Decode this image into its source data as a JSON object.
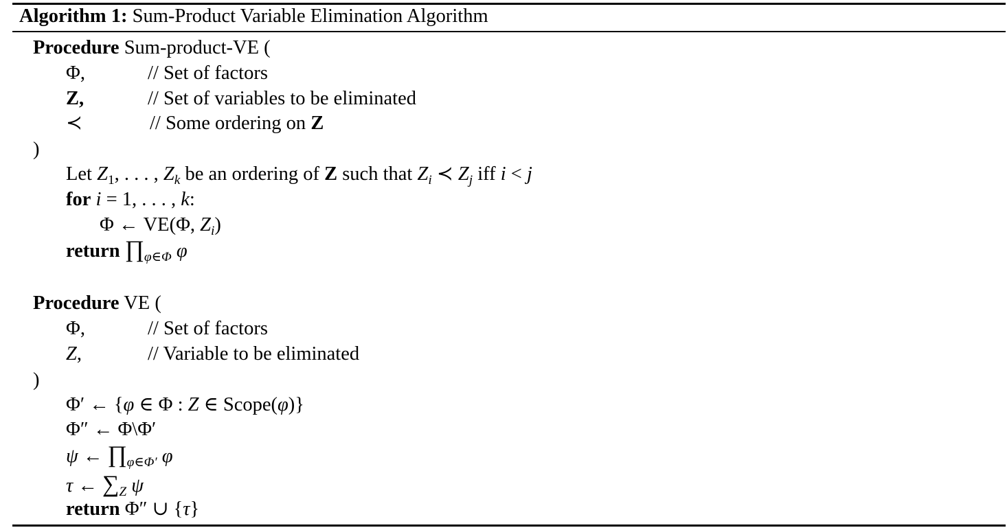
{
  "algorithm": {
    "label": "Algorithm 1:",
    "title": "Sum-Product Variable Elimination Algorithm"
  },
  "kw": {
    "procedure": "Procedure",
    "for": "for",
    "return": "return"
  },
  "sum_product_ve": {
    "name": "Sum-product-VE (",
    "params": [
      {
        "symbol": "Φ,",
        "comment": "// Set of factors"
      },
      {
        "symbol": "Z,",
        "comment": "// Set of variables to be eliminated"
      },
      {
        "symbol": "≺",
        "comment": "// Some ordering on",
        "comment_bold": "Z"
      }
    ],
    "close": ")",
    "body": {
      "let_1": "Let",
      "z1": "Z",
      "z1_sub": "1",
      "dots_1": ", . . . , ",
      "zk": "Z",
      "zk_sub": "k",
      "let_2": " be an ordering of ",
      "let_bold": "Z",
      "let_3": " such that ",
      "zi": "Z",
      "zi_sub": "i",
      "prec": " ≺ ",
      "zj": "Z",
      "zj_sub": "j",
      "iff": " iff ",
      "i_var": "i",
      "lt": " < ",
      "j_var": "j",
      "for_var": "i",
      "for_range": " = 1, . . . , ",
      "for_k": "k",
      "for_colon": ":",
      "assign_lhs": "Φ ← VE(Φ, ",
      "assign_z": "Z",
      "assign_sub": "i",
      "assign_close": ")",
      "return_prod": "∏",
      "return_sub": "φ∈Φ",
      "return_var": "φ"
    }
  },
  "ve": {
    "name": "VE (",
    "params": [
      {
        "symbol": "Φ,",
        "comment": "// Set of factors"
      },
      {
        "symbol": "Z",
        "symbol_tail": ",",
        "comment": "// Variable to be eliminated"
      }
    ],
    "close": ")",
    "body": {
      "l1_a": "Φ′ ← {",
      "l1_phi": "φ",
      "l1_b": " ∈ Φ : ",
      "l1_z": "Z",
      "l1_c": " ∈ Scope(",
      "l1_phi2": "φ",
      "l1_d": ")}",
      "l2": "Φ″ ← Φ\\Φ′",
      "l3_psi": "ψ",
      "l3_arrow": " ← ",
      "l3_prod": "∏",
      "l3_sub": "φ∈Φ′",
      "l3_phi": "φ",
      "l4_tau": "τ",
      "l4_arrow": " ← ",
      "l4_sum": "∑",
      "l4_sub": "Z",
      "l4_psi": "ψ",
      "l5_a": "Φ″ ∪ {",
      "l5_tau": "τ",
      "l5_b": "}"
    }
  }
}
